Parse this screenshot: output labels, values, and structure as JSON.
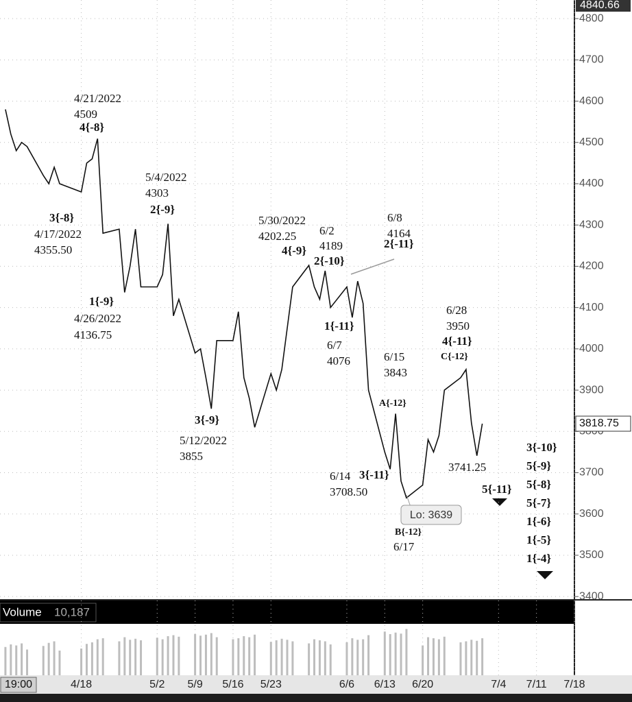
{
  "chart_data": [
    {
      "type": "line",
      "color": "#111111",
      "grid": true,
      "x": [
        "4/4",
        "4/5",
        "4/6",
        "4/7",
        "4/8",
        "4/11",
        "4/12",
        "4/13",
        "4/14",
        "4/18",
        "4/19",
        "4/20",
        "4/21",
        "4/22",
        "4/25",
        "4/26",
        "4/27",
        "4/28",
        "4/29",
        "5/2",
        "5/3",
        "5/4",
        "5/5",
        "5/6",
        "5/9",
        "5/10",
        "5/11",
        "5/12",
        "5/13",
        "5/16",
        "5/17",
        "5/18",
        "5/19",
        "5/20",
        "5/23",
        "5/24",
        "5/25",
        "5/26",
        "5/27",
        "5/30",
        "5/31",
        "6/1",
        "6/2",
        "6/3",
        "6/6",
        "6/7",
        "6/8",
        "6/9",
        "6/10",
        "6/13",
        "6/14",
        "6/15",
        "6/16",
        "6/17",
        "6/20",
        "6/21",
        "6/22",
        "6/23",
        "6/24",
        "6/27",
        "6/28",
        "6/29",
        "6/30",
        "7/1"
      ],
      "values": [
        4580,
        4520,
        4480,
        4500,
        4490,
        4420,
        4400,
        4440,
        4400,
        4380,
        4450,
        4460,
        4509,
        4280,
        4290,
        4136.75,
        4200,
        4290,
        4150,
        4150,
        4180,
        4303,
        4080,
        4120,
        3990,
        4000,
        3930,
        3855,
        4020,
        4020,
        4090,
        3930,
        3880,
        3810,
        3940,
        3900,
        3950,
        4050,
        4150,
        4202.25,
        4150,
        4120,
        4189,
        4100,
        4150,
        4076,
        4164,
        4110,
        3900,
        3750,
        3708.5,
        3843,
        3680,
        3639,
        3670,
        3780,
        3750,
        3790,
        3900,
        3930,
        3950,
        3820,
        3741.25,
        3818.75
      ],
      "xlim": [
        "4/3",
        "7/18"
      ],
      "xticks": [
        "4/18",
        "5/2",
        "5/9",
        "5/16",
        "5/23",
        "6/6",
        "6/13",
        "6/20",
        "7/4",
        "7/11",
        "7/18"
      ],
      "ylim": [
        3392,
        4845
      ],
      "yticks": [
        3400,
        3500,
        3600,
        3700,
        3800,
        3900,
        4000,
        4100,
        4200,
        4300,
        4400,
        4500,
        4600,
        4700,
        4800
      ],
      "top_price_label": "4840.66",
      "last_price": 3818.75,
      "low_label": "Lo: 3639",
      "time_label": "19:00",
      "annotations": [
        "4/21/2022",
        "4509",
        "4{-8}",
        "3{-8}",
        "4/17/2022",
        "4355.50",
        "1{-9}",
        "4/26/2022",
        "4136.75",
        "5/4/2022",
        "4303",
        "2{-9}",
        "3{-9}",
        "5/12/2022",
        "3855",
        "5/30/2022",
        "4202.25",
        "4{-9}",
        "6/2",
        "4189",
        "2{-10}",
        "6/8",
        "4164",
        "2{-11}",
        "1{-11}",
        "6/7",
        "4076",
        "6/15",
        "3843",
        "A{-12}",
        "6/28",
        "3950",
        "4{-11}",
        "C{-12}",
        "6/14",
        "3708.50",
        "3{-11}",
        "3741.25",
        "5{-11}",
        "B{-12}",
        "6/17"
      ],
      "wave_targets": [
        "3{-10}",
        "5{-9}",
        "5{-8}",
        "5{-7}",
        "1{-6}",
        "1{-5}",
        "1{-4}"
      ]
    },
    {
      "type": "bar",
      "title": "Volume",
      "last_value": "10,187",
      "color": "#bdbdbd",
      "ylim": [
        0,
        100
      ],
      "values": [
        55,
        60,
        58,
        62,
        50,
        57,
        63,
        66,
        48,
        52,
        61,
        64,
        70,
        72,
        66,
        74,
        69,
        71,
        68,
        73,
        70,
        76,
        78,
        75,
        80,
        77,
        79,
        82,
        74,
        70,
        72,
        76,
        74,
        79,
        65,
        68,
        71,
        69,
        66,
        62,
        70,
        68,
        66,
        60,
        64,
        72,
        69,
        70,
        78,
        85,
        80,
        83,
        81,
        90,
        58,
        74,
        72,
        70,
        75,
        64,
        66,
        69,
        67,
        72
      ]
    }
  ]
}
